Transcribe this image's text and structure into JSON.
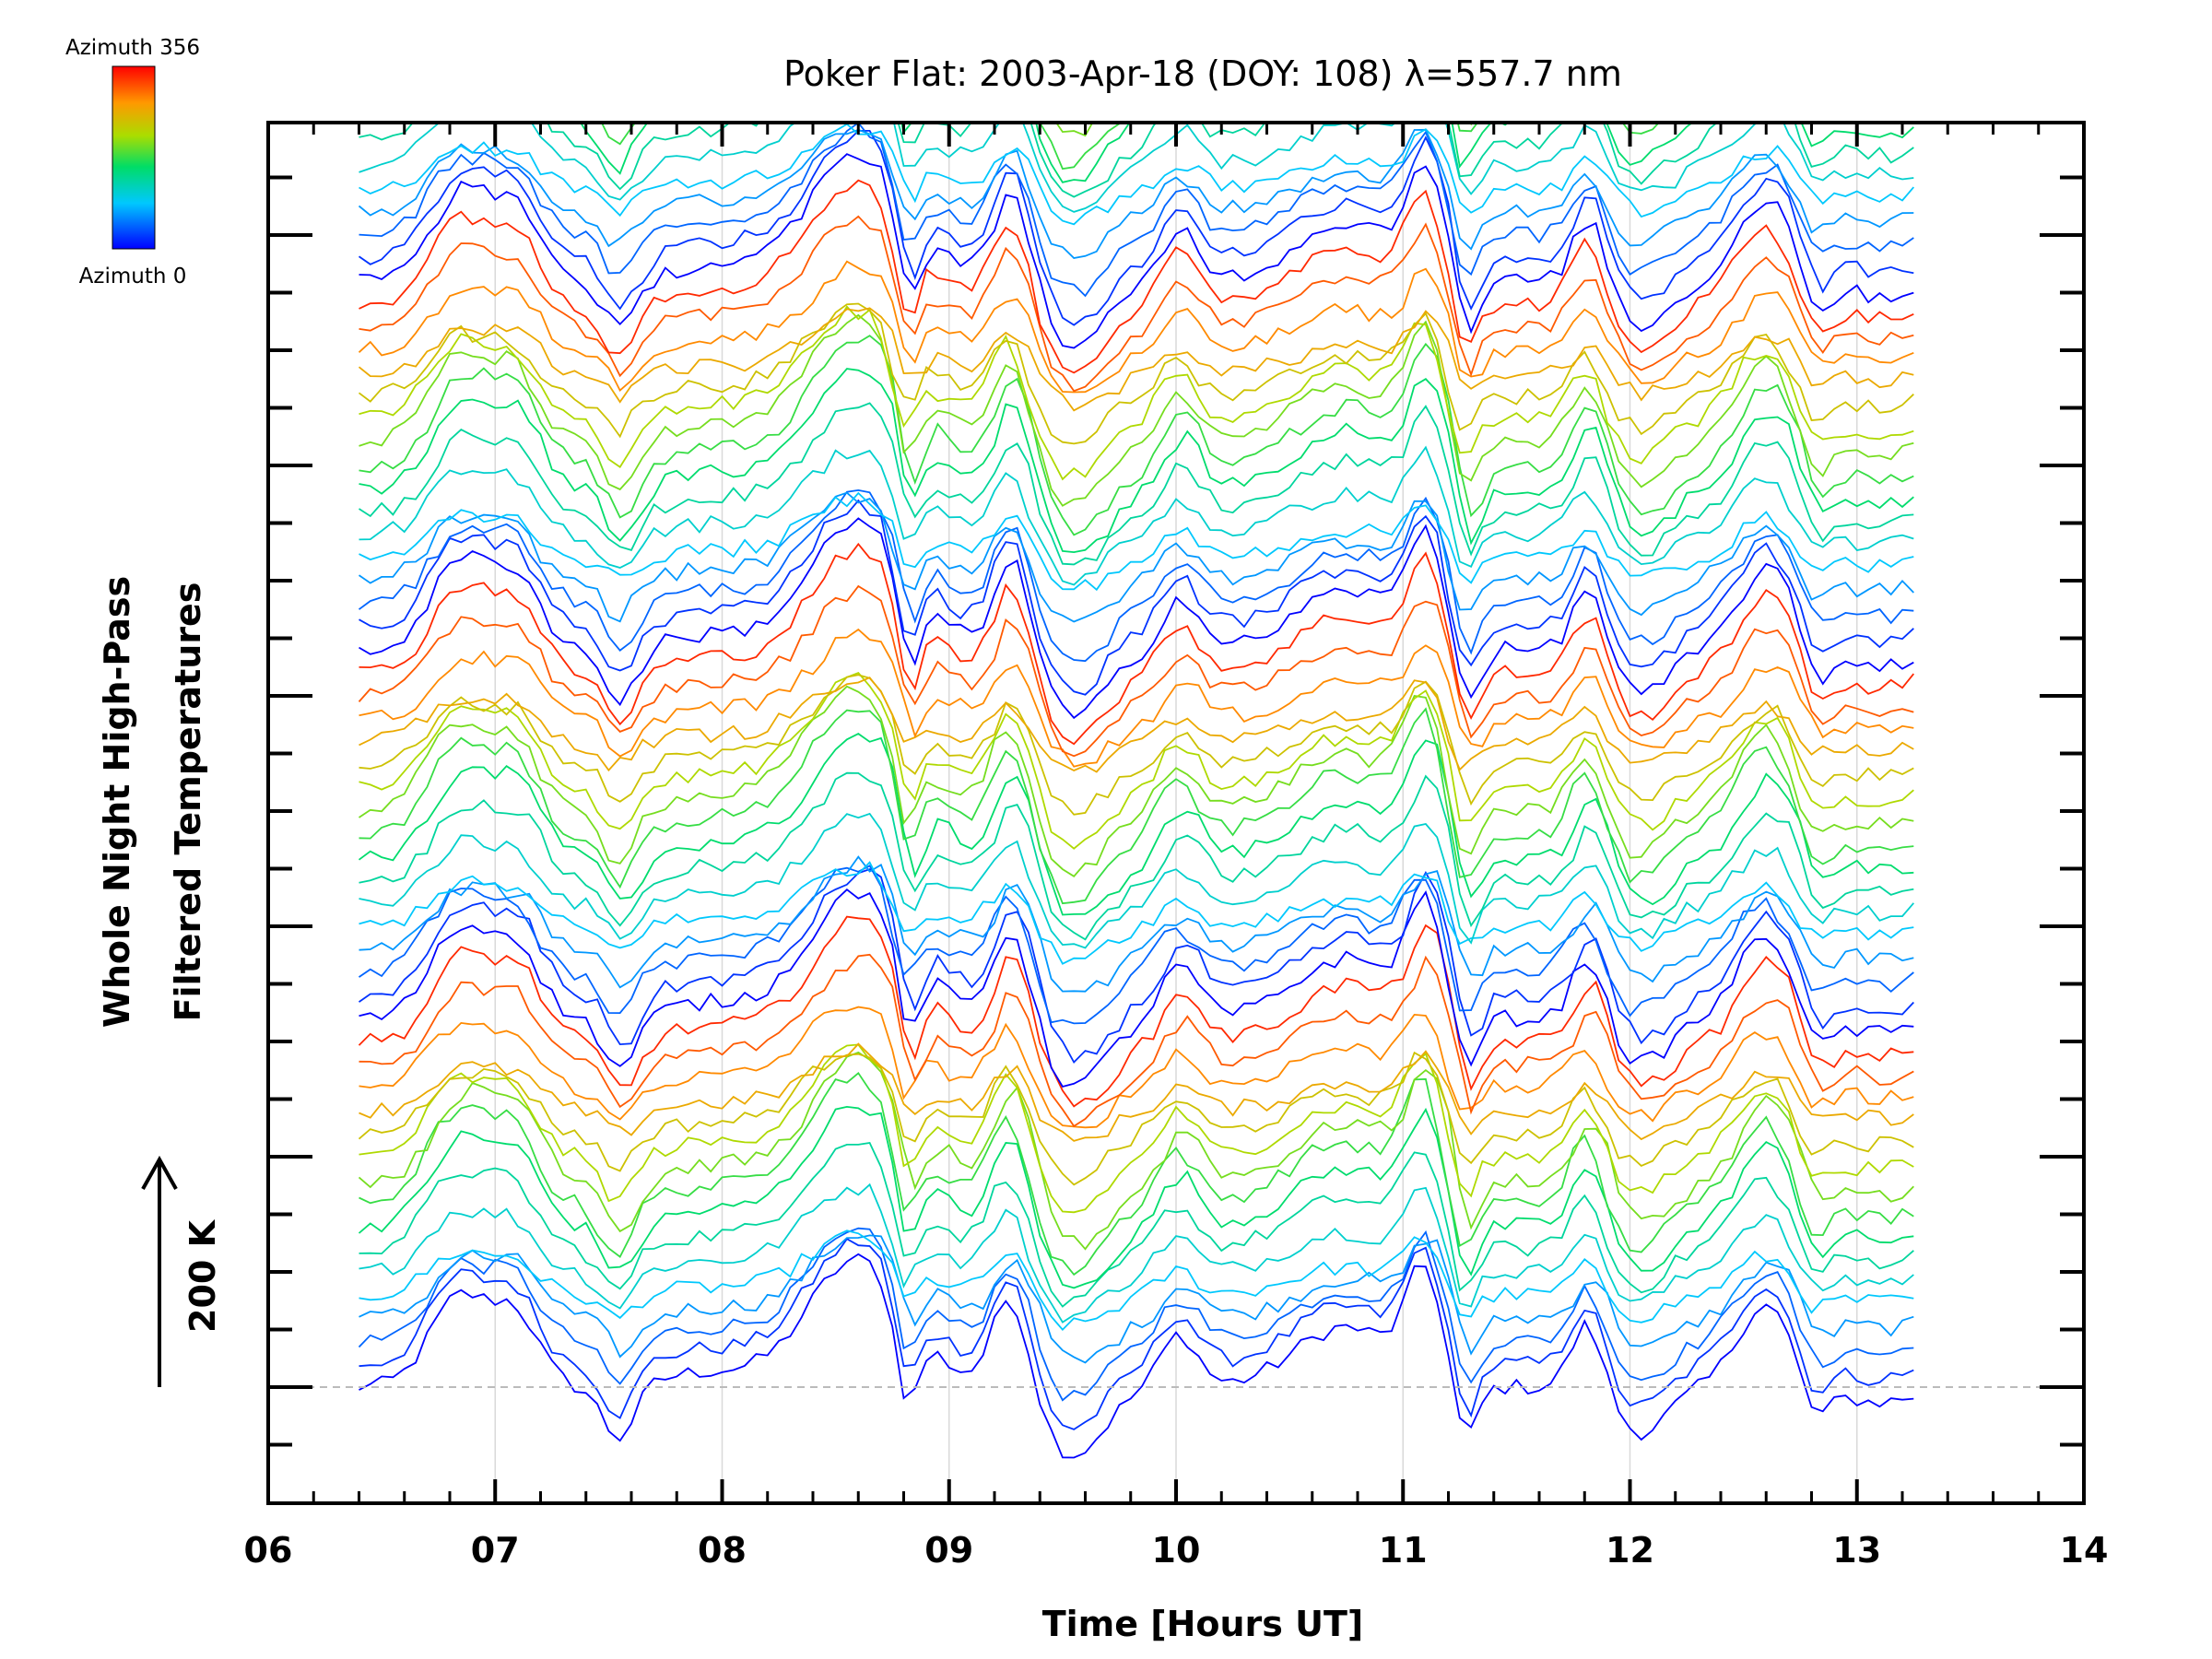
{
  "chart_data": {
    "type": "line",
    "title": "Poker Flat: 2003-Apr-18 (DOY: 108) λ=557.7 nm",
    "xlabel": "Time [Hours UT]",
    "ylabel_line1": "Whole Night High-Pass",
    "ylabel_line2": "Filtered Temperatures",
    "scale_bar_label": "200 K",
    "scale_bar_value": 200,
    "colorbar": {
      "top_label": "Azimuth  356",
      "bottom_label": "Azimuth  0",
      "min": 0,
      "max": 356,
      "colormap": "rainbow"
    },
    "xlim": [
      6,
      14
    ],
    "x_ticks": [
      6,
      7,
      8,
      9,
      10,
      11,
      12,
      13,
      14
    ],
    "x_tick_labels": [
      "06",
      "07",
      "08",
      "09",
      "10",
      "11",
      "12",
      "13",
      "14"
    ],
    "x_grid": [
      7,
      8,
      9,
      10,
      11,
      12,
      13
    ],
    "y_grid": "off",
    "y_tick_labels": "none",
    "line_series": {
      "count": 112,
      "azimuth_start": 0,
      "azimuth_end": 356,
      "offset_k_per_series": 20,
      "x_start_hour": 6.4,
      "x_end_hour": 13.27,
      "x_step_hour": 0.05
    },
    "baseline_dashed": true,
    "colors": {
      "axes": "#000000",
      "grid": "#d9d9d9",
      "baseline": "#bbbbbb",
      "background": "#ffffff"
    }
  }
}
